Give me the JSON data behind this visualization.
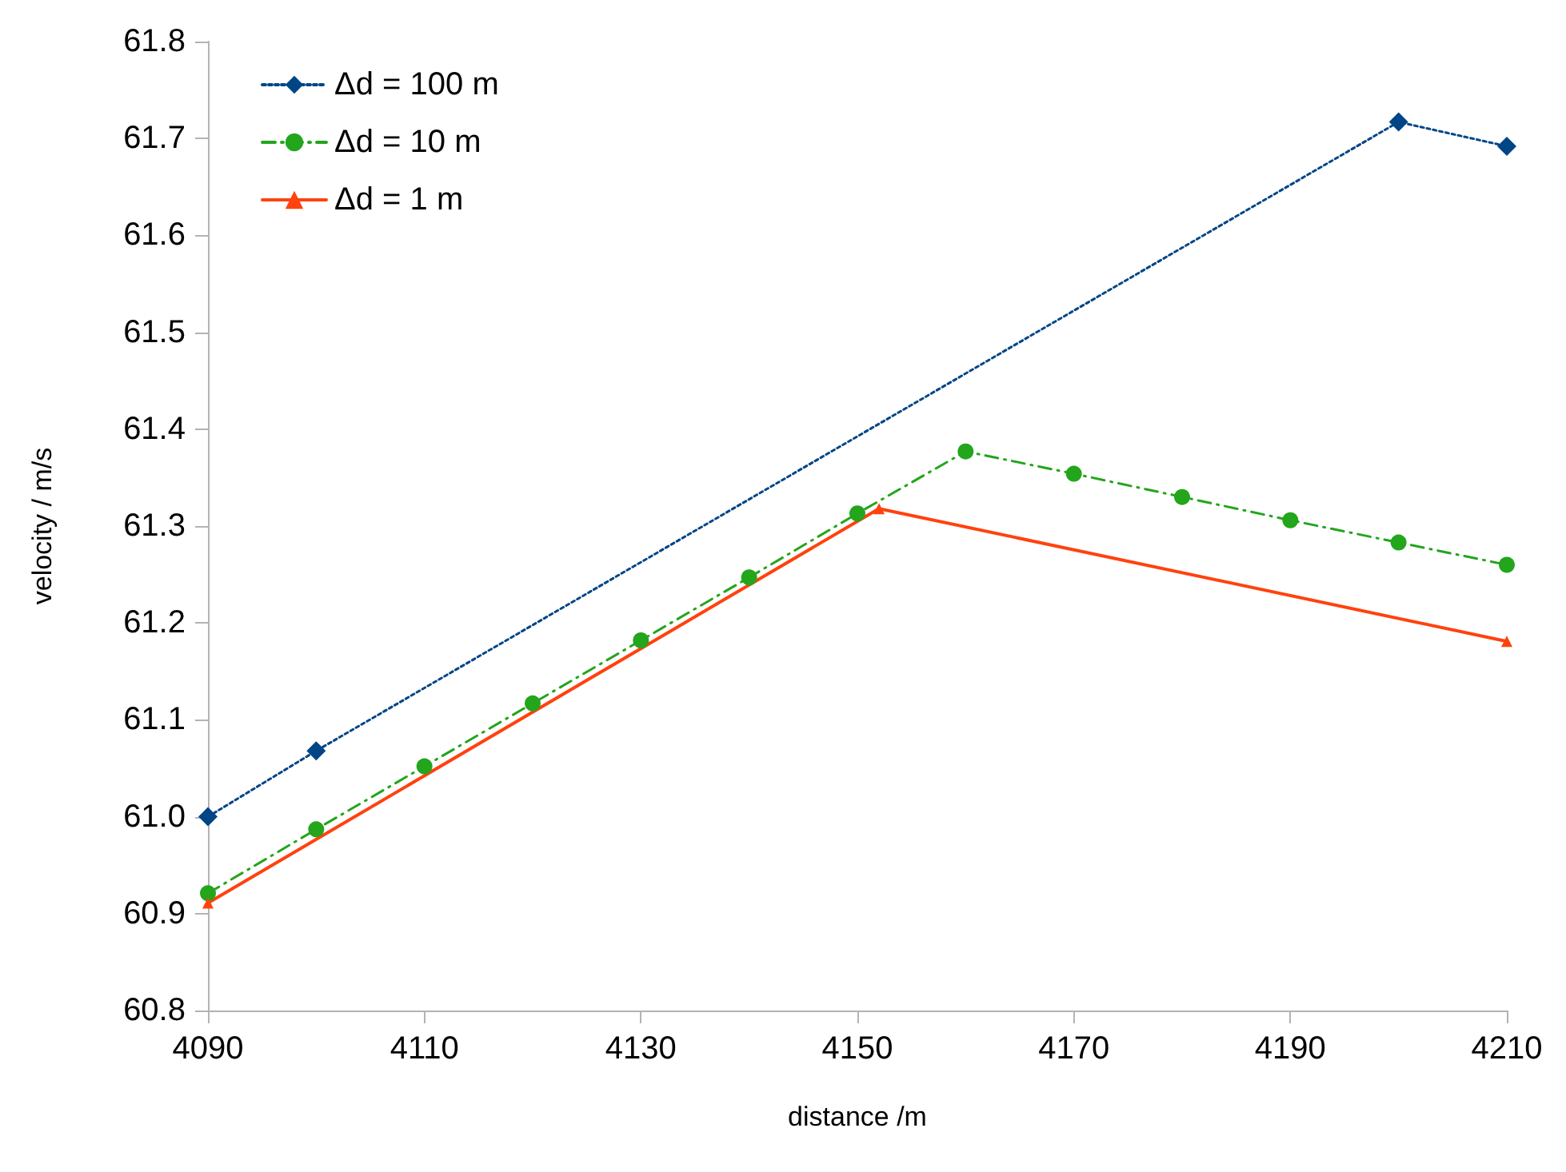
{
  "chart_data": {
    "type": "line",
    "xlabel": "distance /m",
    "ylabel": "velocity / m/s",
    "xlim": [
      4090,
      4210
    ],
    "xticks": [
      4090,
      4110,
      4130,
      4150,
      4170,
      4190,
      4210
    ],
    "ylim": [
      60.8,
      61.8
    ],
    "yticks": [
      60.8,
      60.9,
      {
        "value": 61.0,
        "label": "61.0"
      },
      61.1,
      61.2,
      61.3,
      61.4,
      61.5,
      61.6,
      61.7,
      61.8
    ],
    "grid": false,
    "legend": "top left",
    "series": [
      {
        "name": "Δd = 100 m",
        "color": "#004586",
        "marker": "diamond",
        "line_style": "dotted",
        "x": [
          4090,
          4100,
          4200,
          4210
        ],
        "values": [
          61.0,
          61.068,
          61.717,
          61.692
        ]
      },
      {
        "name": "Δd = 10 m",
        "color": "#23a51c",
        "marker": "circle",
        "line_style": "dashed",
        "x": [
          4090,
          4100,
          4110,
          4120,
          4130,
          4140,
          4150,
          4160,
          4170,
          4180,
          4190,
          4200,
          4210
        ],
        "values": [
          60.921,
          60.987,
          61.052,
          61.117,
          61.182,
          61.247,
          61.313,
          61.377,
          61.354,
          61.33,
          61.306,
          61.283,
          61.26
        ]
      },
      {
        "name": "Δd = 1 m",
        "color": "#ff420e",
        "marker": "triangle",
        "line_style": "solid",
        "x": [
          4090,
          4152,
          4210
        ],
        "values": [
          60.911,
          61.318,
          61.181
        ]
      }
    ]
  }
}
